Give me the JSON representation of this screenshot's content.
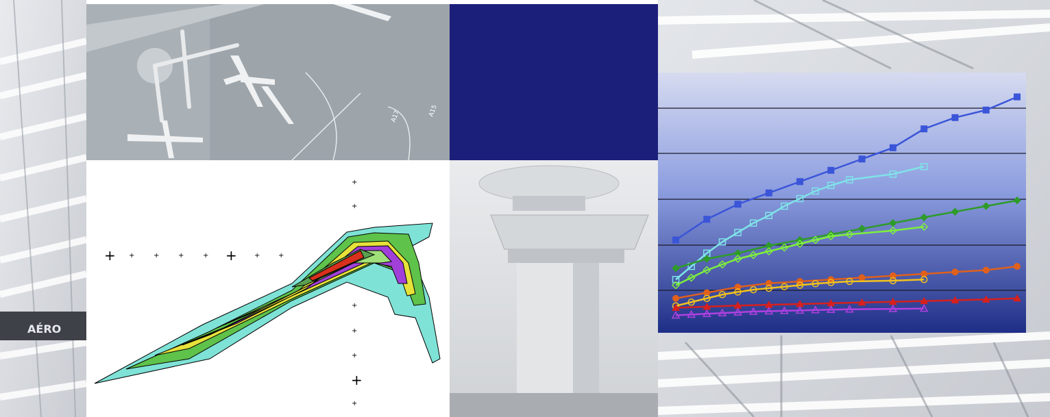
{
  "image": {
    "panels": [
      {
        "name": "architecture-background-left",
        "description_shown": false
      },
      {
        "name": "aerial-apron-photo",
        "visible_text": [
          "A17",
          "A15"
        ]
      },
      {
        "name": "solid-navy-block",
        "color": "#1c1f7a"
      },
      {
        "name": "contour-plot"
      },
      {
        "name": "control-tower-photo"
      },
      {
        "name": "architecture-background-right"
      },
      {
        "name": "line-chart-panel"
      }
    ],
    "aerial_labels": {
      "gate_a": "A17",
      "gate_b": "A15"
    },
    "sign_text": "AÉRO"
  },
  "chart_data": {
    "type": "line",
    "title": "",
    "xlabel": "",
    "ylabel": "",
    "ylim": [
      0,
      10
    ],
    "grid": true,
    "legend": "none",
    "series": [
      {
        "color": "#3a55d8",
        "marker": "square-filled",
        "x": [
          0,
          1,
          2,
          3,
          4,
          5,
          6,
          7,
          8,
          9,
          10,
          11
        ],
        "values": [
          2.1,
          2.65,
          3.05,
          3.35,
          3.65,
          3.95,
          4.25,
          4.55,
          5.05,
          5.35,
          5.55,
          5.9
        ]
      },
      {
        "color": "#7fe3e8",
        "marker": "square-open",
        "x": [
          0,
          0.5,
          1,
          1.5,
          2,
          2.5,
          3,
          3.5,
          4,
          4.5,
          5,
          5.6,
          7,
          8
        ],
        "values": [
          1.05,
          1.4,
          1.75,
          2.05,
          2.3,
          2.55,
          2.75,
          3.0,
          3.2,
          3.4,
          3.55,
          3.7,
          3.85,
          4.05
        ]
      },
      {
        "color": "#2e9b2a",
        "marker": "diamond-filled",
        "x": [
          0,
          1,
          2,
          3,
          4,
          5,
          6,
          7,
          8,
          9,
          10,
          11
        ],
        "values": [
          1.35,
          1.6,
          1.75,
          1.95,
          2.1,
          2.25,
          2.4,
          2.55,
          2.7,
          2.85,
          3.0,
          3.15
        ]
      },
      {
        "color": "#7ef03c",
        "marker": "diamond-open",
        "x": [
          0,
          0.5,
          1,
          1.5,
          2,
          2.5,
          3,
          3.5,
          4,
          4.5,
          5,
          5.6,
          7,
          8
        ],
        "values": [
          0.9,
          1.1,
          1.3,
          1.45,
          1.6,
          1.7,
          1.8,
          1.9,
          2.0,
          2.1,
          2.2,
          2.25,
          2.35,
          2.45
        ]
      },
      {
        "color": "#e0601c",
        "marker": "circle-filled",
        "x": [
          0,
          1,
          2,
          3,
          4,
          5,
          6,
          7,
          8,
          9,
          10,
          11
        ],
        "values": [
          0.55,
          0.7,
          0.85,
          0.95,
          1.0,
          1.05,
          1.1,
          1.15,
          1.2,
          1.25,
          1.3,
          1.4
        ]
      },
      {
        "color": "#f4c21c",
        "marker": "circle-open",
        "x": [
          0,
          0.5,
          1,
          1.5,
          2,
          2.5,
          3,
          3.5,
          4,
          4.5,
          5,
          5.6,
          7,
          8
        ],
        "values": [
          0.35,
          0.45,
          0.55,
          0.65,
          0.72,
          0.78,
          0.82,
          0.86,
          0.9,
          0.94,
          0.97,
          1.0,
          1.02,
          1.05
        ]
      },
      {
        "color": "#d8201c",
        "marker": "triangle-filled",
        "x": [
          0,
          1,
          2,
          3,
          4,
          5,
          6,
          7,
          8,
          9,
          10,
          11
        ],
        "values": [
          0.3,
          0.33,
          0.36,
          0.38,
          0.4,
          0.42,
          0.44,
          0.46,
          0.48,
          0.5,
          0.52,
          0.55
        ]
      },
      {
        "color": "#b040e0",
        "marker": "triangle-open",
        "x": [
          0,
          0.5,
          1,
          1.5,
          2,
          2.5,
          3,
          3.5,
          4,
          4.5,
          5,
          5.6,
          7,
          8
        ],
        "values": [
          0.1,
          0.12,
          0.14,
          0.16,
          0.18,
          0.2,
          0.21,
          0.22,
          0.23,
          0.24,
          0.25,
          0.26,
          0.27,
          0.28
        ]
      }
    ]
  }
}
